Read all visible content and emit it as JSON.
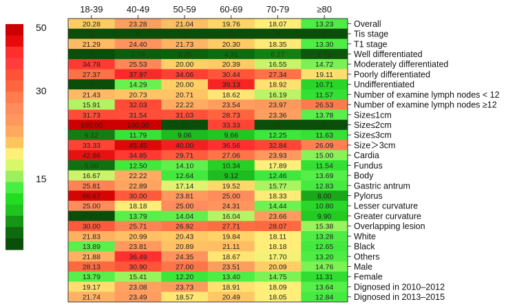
{
  "chart_data": {
    "type": "heatmap",
    "title": "",
    "columns": [
      "18-39",
      "40-49",
      "50-59",
      "60-69",
      "70-79",
      "≥80"
    ],
    "rows": [
      {
        "label": "Overall",
        "values": [
          "20.28",
          "23.28",
          "21.04",
          "19.76",
          "18.07",
          "13.23"
        ]
      },
      {
        "label": "Tis stage",
        "values": [
          "0",
          "0",
          "0",
          "0",
          "0",
          "0"
        ]
      },
      {
        "label": "T1 stage",
        "values": [
          "21.29",
          "24.40",
          "21.73",
          "20.30",
          "18.35",
          "13.30"
        ]
      },
      {
        "label": "Well differentiated",
        "values": [
          "0",
          "2.78",
          "3.25",
          "4.31",
          "6.27",
          "1.73"
        ]
      },
      {
        "label": "Moderately differentiated",
        "values": [
          "34.78",
          "25.53",
          "20.00",
          "20.39",
          "16.55",
          "14.72"
        ]
      },
      {
        "label": "Poorly differentiated",
        "values": [
          "27.37",
          "37.97",
          "34.06",
          "30.44",
          "27.34",
          "19.11"
        ]
      },
      {
        "label": "Undifferentiated",
        "values": [
          "0",
          "14.29",
          "20.00",
          "39.13",
          "18.92",
          "10.71"
        ]
      },
      {
        "label": "Number of examine lymph nodes < 12",
        "values": [
          "21.43",
          "20.73",
          "20.71",
          "18.62",
          "16.19",
          "11.57"
        ]
      },
      {
        "label": "Number of examine lymph nodes ≥12",
        "values": [
          "15.91",
          "32.03",
          "22.22",
          "23.54",
          "23.97",
          "26.53"
        ]
      },
      {
        "label": "Size≤1cm",
        "values": [
          "31.73",
          "31.54",
          "31.03",
          "28.73",
          "23.36",
          "13.78"
        ]
      },
      {
        "label": "Size≤2cm",
        "values": [
          "100.00",
          "100.00",
          "0",
          "33.33",
          "0",
          "0"
        ]
      },
      {
        "label": "Size≤3cm",
        "values": [
          "6.12",
          "11.79",
          "9.06",
          "9.66",
          "12.25",
          "11.63"
        ]
      },
      {
        "label": "Size＞3cm",
        "values": [
          "33.33",
          "45.45",
          "40.00",
          "36.56",
          "32.84",
          "26.09"
        ]
      },
      {
        "label": "Cardia",
        "values": [
          "42.86",
          "34.85",
          "29.71",
          "27.06",
          "23.93",
          "15.00"
        ]
      },
      {
        "label": "Fundus",
        "values": [
          "5.00",
          "12.50",
          "14.10",
          "10.34",
          "17.89",
          "11.54"
        ]
      },
      {
        "label": "Body",
        "values": [
          "16.67",
          "22.22",
          "12.64",
          "9.12",
          "12.46",
          "13.69"
        ]
      },
      {
        "label": "Gastric antrum",
        "values": [
          "25.81",
          "22.89",
          "17.14",
          "19.52",
          "15.77",
          "12.83"
        ]
      },
      {
        "label": "Pylorus",
        "values": [
          "66.67",
          "30.00",
          "23.81",
          "25.00",
          "18.33",
          "8.00"
        ]
      },
      {
        "label": "Lesser curvature",
        "values": [
          "25.00",
          "18.18",
          "25.00",
          "24.31",
          "14.44",
          "10.80"
        ]
      },
      {
        "label": "Greater curvature",
        "values": [
          "0",
          "13.79",
          "14.04",
          "16.04",
          "23.66",
          "9.90"
        ]
      },
      {
        "label": "Overlapping lesion",
        "values": [
          "30.00",
          "25.71",
          "26.92",
          "27.71",
          "28.07",
          "15.38"
        ]
      },
      {
        "label": "White",
        "values": [
          "21.83",
          "20.99",
          "20.43",
          "19.84",
          "18.11",
          "13.28"
        ]
      },
      {
        "label": "Black",
        "values": [
          "13.89",
          "23.81",
          "20.89",
          "21.11",
          "18.18",
          "12.65"
        ]
      },
      {
        "label": "Others",
        "values": [
          "21.88",
          "36.49",
          "24.35",
          "18.67",
          "17.70",
          "13.20"
        ]
      },
      {
        "label": "Male",
        "values": [
          "28.13",
          "30.90",
          "27.00",
          "23.51",
          "20.09",
          "14.76"
        ]
      },
      {
        "label": "Female",
        "values": [
          "13.79",
          "15.41",
          "12.20",
          "13.40",
          "14.75",
          "11.31"
        ]
      },
      {
        "label": "Dignosed in 2010–2012",
        "values": [
          "19.17",
          "23.08",
          "23.73",
          "18.91",
          "18.09",
          "13.64"
        ]
      },
      {
        "label": "Dignosed in 2013–2015",
        "values": [
          "21.74",
          "23.49",
          "18.57",
          "20.49",
          "18.05",
          "12.84"
        ]
      }
    ],
    "legend": {
      "ticks": [
        "50",
        "30",
        "15"
      ],
      "colors": [
        "#cc0000",
        "#e60a0a",
        "#ff2e2e",
        "#ff3d3d",
        "#ff5236",
        "#ff6640",
        "#ff7c4e",
        "#ff8c5c",
        "#ff985e",
        "#ffa860",
        "#ffc45e",
        "#fff07a",
        "#d8f86c",
        "#9cf05e",
        "#48ee44",
        "#22dd22",
        "#1fc41f",
        "#169416",
        "#0e6a0e",
        "#0a4e0a"
      ]
    },
    "color_stops": [
      [
        0,
        "#0a4e0a"
      ],
      [
        3,
        "#0e5e0e"
      ],
      [
        6,
        "#137a13"
      ],
      [
        8,
        "#1aa81a"
      ],
      [
        10,
        "#22cc22"
      ],
      [
        12,
        "#38e638"
      ],
      [
        14,
        "#5cf04c"
      ],
      [
        16,
        "#b4f464"
      ],
      [
        18,
        "#fff07a"
      ],
      [
        20,
        "#ffd066"
      ],
      [
        22,
        "#ffae62"
      ],
      [
        25,
        "#ff8c5c"
      ],
      [
        28,
        "#ff6a40"
      ],
      [
        32,
        "#ff4a38"
      ],
      [
        37,
        "#ff2e2e"
      ],
      [
        45,
        "#dd0808"
      ],
      [
        100,
        "#cc0000"
      ]
    ]
  }
}
